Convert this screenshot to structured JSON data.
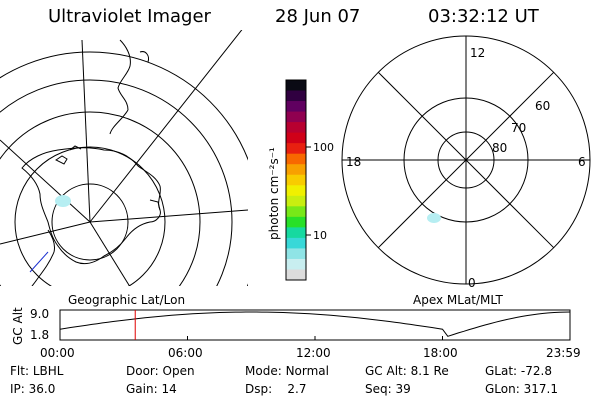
{
  "header": {
    "title": "Ultraviolet Imager",
    "date": "28 Jun 07",
    "time": "03:32:12 UT"
  },
  "colorbar": {
    "unit_label": "photon cm⁻²s⁻¹",
    "ticks": [
      "100",
      "10"
    ],
    "colors": [
      "#dcdcdc",
      "#c8eef0",
      "#8fe4e6",
      "#38d8d8",
      "#16d9a0",
      "#28e028",
      "#78e818",
      "#c8ee10",
      "#f0f000",
      "#f8cc00",
      "#f8a000",
      "#f86800",
      "#e82010",
      "#d00018",
      "#b80030",
      "#900050",
      "#600060",
      "#300040",
      "#0a0a14"
    ]
  },
  "left_map": {
    "projection_label": "Geographic Lat/Lon"
  },
  "right_map": {
    "projection_label": "Apex MLat/MLT",
    "mlt_labels": {
      "top": "12",
      "left": "18",
      "right": "6",
      "bottom": "0"
    },
    "mlat_labels": [
      "60",
      "70",
      "80"
    ]
  },
  "altitude_plot": {
    "ylabel": "GC Alt",
    "yticks": [
      "9.0",
      "1.8"
    ],
    "xticks": [
      "00:00",
      "06:00",
      "12:00",
      "18:00",
      "23:59"
    ],
    "current_time_hours": 3.54
  },
  "info_rows": [
    [
      {
        "key": "Flt:",
        "value": "LBHL"
      },
      {
        "key": "Door:",
        "value": "Open"
      },
      {
        "key": "Mode:",
        "value": "Normal"
      },
      {
        "key": "GC Alt:",
        "value": "8.1 Re"
      },
      {
        "key": "GLat:",
        "value": "-72.8"
      }
    ],
    [
      {
        "key": "IP:",
        "value": "36.0"
      },
      {
        "key": "Gain:",
        "value": "14"
      },
      {
        "key": "Dsp:",
        "value": "2.7"
      },
      {
        "key": "Seq:",
        "value": "39"
      },
      {
        "key": "GLon:",
        "value": "317.1"
      }
    ]
  ]
}
